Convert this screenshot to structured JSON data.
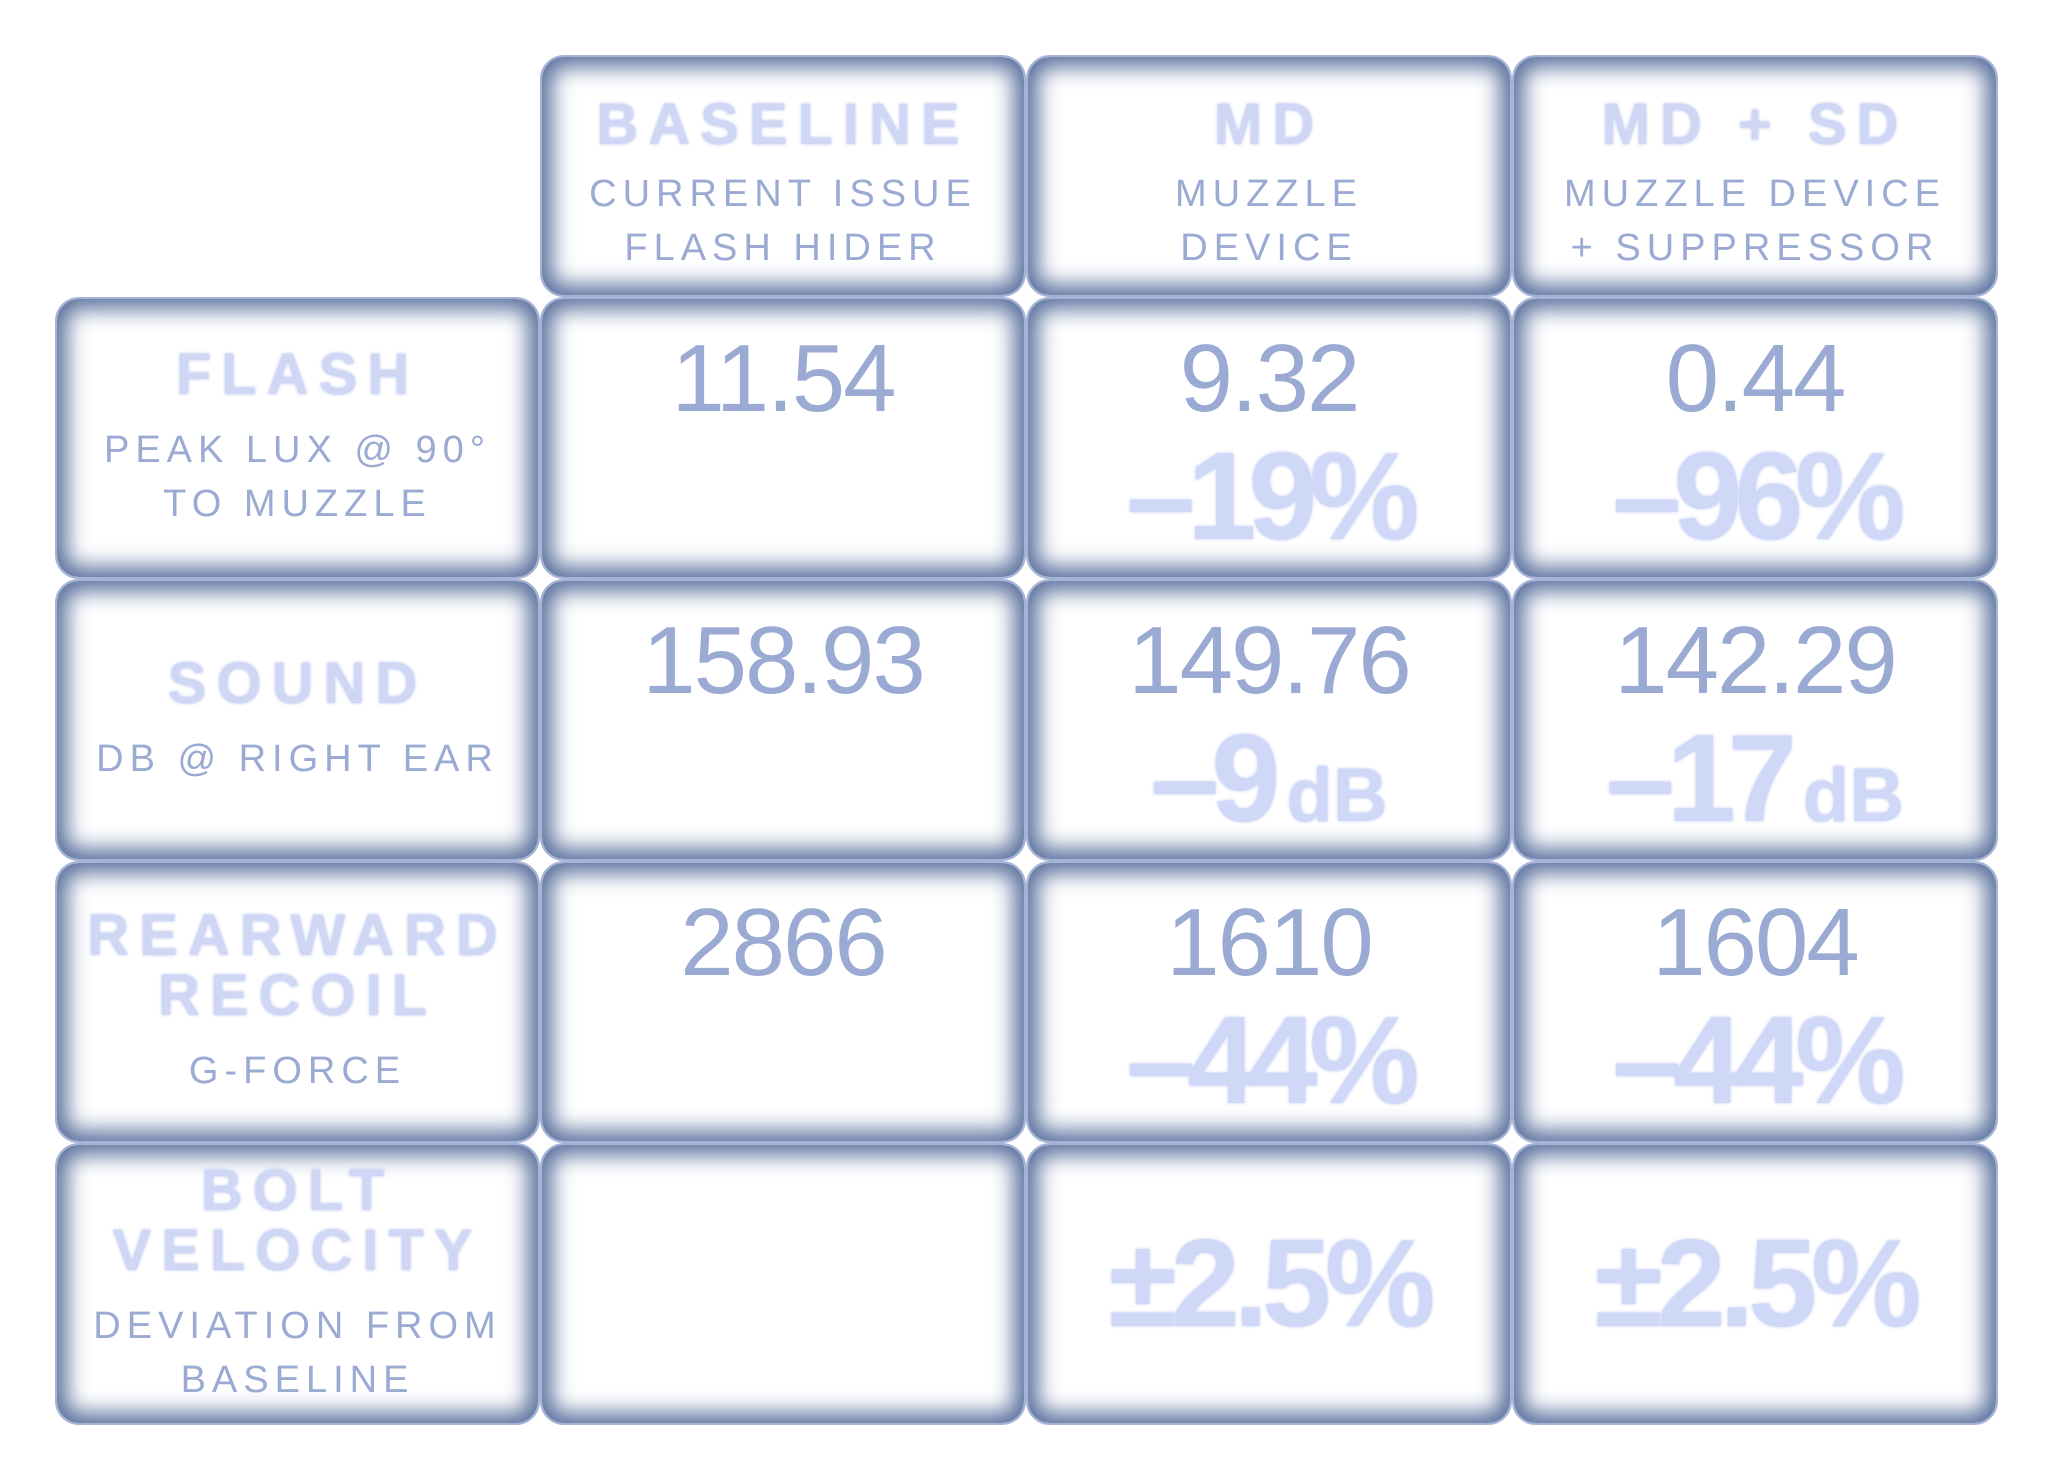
{
  "columns": [
    {
      "title": "BASELINE",
      "sub1": "CURRENT ISSUE",
      "sub2": "FLASH HIDER"
    },
    {
      "title": "MD",
      "sub1": "MUZZLE",
      "sub2": "DEVICE"
    },
    {
      "title": "MD + SD",
      "sub1": "MUZZLE DEVICE",
      "sub2": "+ SUPPRESSOR"
    }
  ],
  "rows": [
    {
      "title1": "FLASH",
      "title2": "",
      "sub1": "PEAK LUX @ 90°",
      "sub2": "TO MUZZLE",
      "values": [
        "11.54",
        "9.32",
        "0.44"
      ],
      "deltas": [
        "",
        "–19%",
        "–96%"
      ],
      "units": [
        "",
        "",
        ""
      ]
    },
    {
      "title1": "SOUND",
      "title2": "",
      "sub1": "DB @ RIGHT EAR",
      "sub2": "",
      "values": [
        "158.93",
        "149.76",
        "142.29"
      ],
      "deltas": [
        "",
        "–9",
        "–17"
      ],
      "units": [
        "",
        "dB",
        "dB"
      ]
    },
    {
      "title1": "REARWARD",
      "title2": "RECOIL",
      "sub1": "G-FORCE",
      "sub2": "",
      "values": [
        "2866",
        "1610",
        "1604"
      ],
      "deltas": [
        "",
        "–44%",
        "–44%"
      ],
      "units": [
        "",
        "",
        ""
      ]
    },
    {
      "title1": "BOLT",
      "title2": "VELOCITY",
      "sub1": "DEVIATION FROM",
      "sub2": "BASELINE",
      "values": [
        "",
        "",
        ""
      ],
      "deltas": [
        "",
        "±2.5%",
        "±2.5%"
      ],
      "units": [
        "",
        "",
        ""
      ]
    }
  ],
  "colors": {
    "frame": "#465f91",
    "line": "#a5b3d6",
    "title_text": "#cfd7f5",
    "value_text": "#9aaad3"
  }
}
